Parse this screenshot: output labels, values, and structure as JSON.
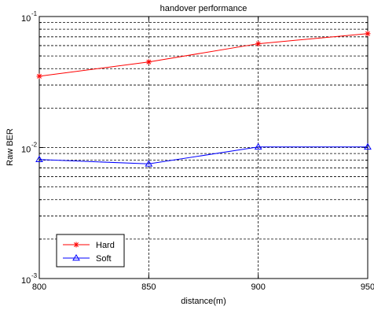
{
  "chart_data": {
    "type": "line",
    "title": "handover performance",
    "xlabel": "distance(m)",
    "ylabel": "Raw BER",
    "x": [
      800,
      850,
      900,
      950
    ],
    "xlim": [
      800,
      950
    ],
    "ylim": [
      0.001,
      0.1
    ],
    "yscale": "log",
    "grid": true,
    "legend_position": "bottom-left",
    "x_tick_labels": [
      "800",
      "850",
      "900",
      "950"
    ],
    "y_tick_labels": [
      {
        "value": 0.001,
        "base": "10",
        "exp": "-3"
      },
      {
        "value": 0.01,
        "base": "10",
        "exp": "-2"
      },
      {
        "value": 0.1,
        "base": "10",
        "exp": "-1"
      }
    ],
    "series": [
      {
        "name": "Hard",
        "values": [
          0.035,
          0.045,
          0.062,
          0.074
        ],
        "color": "#ff0000",
        "marker": "star"
      },
      {
        "name": "Soft",
        "values": [
          0.0081,
          0.0075,
          0.0101,
          0.0101
        ],
        "color": "#0000ff",
        "marker": "triangle"
      }
    ]
  }
}
